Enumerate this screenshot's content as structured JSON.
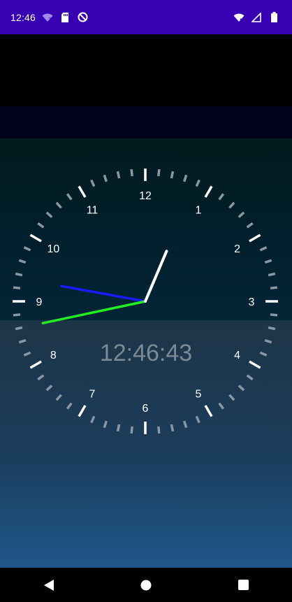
{
  "status_bar": {
    "time": "12:46",
    "left_icons": [
      "wifi-question-icon",
      "sd-card-icon",
      "do-not-disturb-icon"
    ],
    "right_icons": [
      "wifi-off-icon",
      "cell-signal-icon",
      "battery-icon"
    ],
    "background": "#3700b3"
  },
  "clock": {
    "numerals": [
      "12",
      "1",
      "2",
      "3",
      "4",
      "5",
      "6",
      "7",
      "8",
      "9",
      "10",
      "11"
    ],
    "hours": 12,
    "minutes": 46,
    "seconds": 43,
    "hand_colors": {
      "hour": "#ffffff",
      "minute": "#1a1aff",
      "second": "#22ee22"
    },
    "tick_color_major": "#ffffff",
    "tick_color_minor": "#8a97a2"
  },
  "digital_time": "12:46:43",
  "nav_bar": {
    "buttons": [
      "back-icon",
      "home-icon",
      "recents-icon"
    ]
  }
}
